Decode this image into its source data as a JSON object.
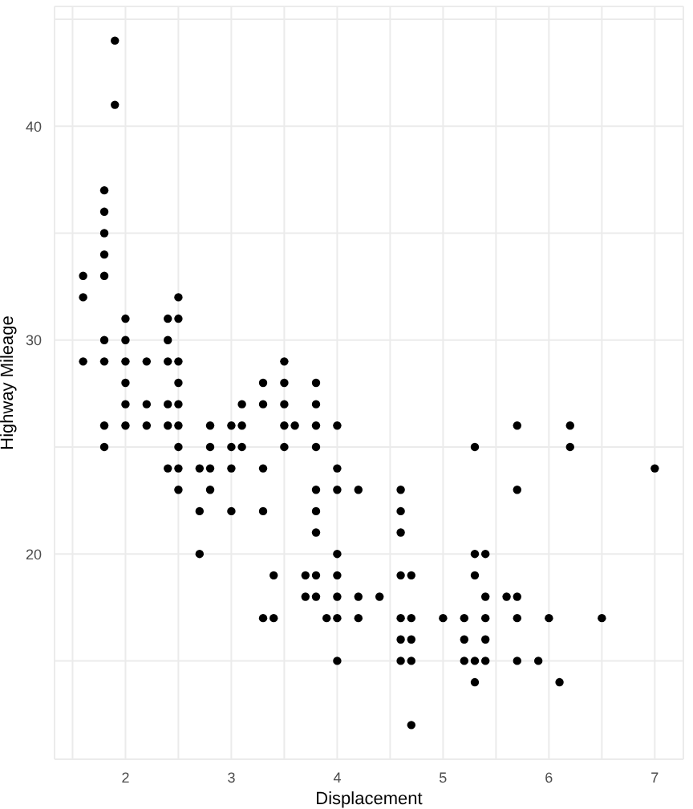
{
  "chart_data": {
    "type": "scatter",
    "xlabel": "Displacement",
    "ylabel": "Highway Mileage",
    "x": [
      1.6,
      1.6,
      1.6,
      1.8,
      1.8,
      1.8,
      1.8,
      1.8,
      1.8,
      1.8,
      1.8,
      1.8,
      1.9,
      1.9,
      2.0,
      2.0,
      2.0,
      2.0,
      2.0,
      2.0,
      2.2,
      2.2,
      2.2,
      2.4,
      2.4,
      2.4,
      2.4,
      2.4,
      2.4,
      2.5,
      2.5,
      2.5,
      2.5,
      2.5,
      2.5,
      2.5,
      2.5,
      2.5,
      2.7,
      2.7,
      2.7,
      2.8,
      2.8,
      2.8,
      2.8,
      3.0,
      3.0,
      3.0,
      3.0,
      3.1,
      3.1,
      3.1,
      3.3,
      3.3,
      3.3,
      3.3,
      3.3,
      3.4,
      3.4,
      3.5,
      3.5,
      3.5,
      3.5,
      3.5,
      3.6,
      3.7,
      3.7,
      3.8,
      3.8,
      3.8,
      3.8,
      3.8,
      3.8,
      3.8,
      3.8,
      3.8,
      3.9,
      4.0,
      4.0,
      4.0,
      4.0,
      4.0,
      4.0,
      4.0,
      4.0,
      4.2,
      4.2,
      4.2,
      4.4,
      4.6,
      4.6,
      4.6,
      4.6,
      4.6,
      4.6,
      4.6,
      4.7,
      4.7,
      4.7,
      4.7,
      4.7,
      5.0,
      5.2,
      5.2,
      5.2,
      5.3,
      5.3,
      5.3,
      5.3,
      5.3,
      5.4,
      5.4,
      5.4,
      5.4,
      5.4,
      5.6,
      5.7,
      5.7,
      5.7,
      5.7,
      5.7,
      5.9,
      6.0,
      6.1,
      6.2,
      6.2,
      6.5,
      7.0
    ],
    "values": [
      33,
      32,
      29,
      37,
      36,
      35,
      34,
      33,
      30,
      29,
      26,
      25,
      44,
      41,
      31,
      30,
      29,
      28,
      27,
      26,
      29,
      27,
      26,
      31,
      30,
      29,
      27,
      26,
      24,
      32,
      31,
      29,
      28,
      27,
      26,
      25,
      24,
      23,
      24,
      22,
      20,
      26,
      25,
      24,
      23,
      26,
      25,
      24,
      22,
      27,
      26,
      25,
      28,
      27,
      24,
      22,
      17,
      19,
      17,
      29,
      28,
      27,
      26,
      25,
      26,
      19,
      18,
      28,
      27,
      26,
      25,
      23,
      22,
      21,
      19,
      18,
      17,
      26,
      24,
      23,
      20,
      19,
      18,
      17,
      15,
      23,
      18,
      17,
      18,
      23,
      22,
      21,
      19,
      17,
      16,
      15,
      19,
      17,
      16,
      15,
      12,
      17,
      17,
      16,
      15,
      25,
      20,
      19,
      15,
      14,
      20,
      18,
      17,
      16,
      15,
      18,
      26,
      23,
      18,
      17,
      15,
      15,
      17,
      14,
      26,
      25,
      17,
      24
    ],
    "color": "#000000",
    "marker": "circle",
    "xlim": [
      1.33,
      7.27
    ],
    "ylim": [
      10.4,
      45.6
    ],
    "xticks": [
      {
        "value": 1.5,
        "label": null
      },
      2,
      {
        "value": 2.5,
        "label": null
      },
      3,
      {
        "value": 3.5,
        "label": null
      },
      4,
      {
        "value": 4.5,
        "label": null
      },
      5,
      {
        "value": 5.5,
        "label": null
      },
      6,
      {
        "value": 6.5,
        "label": null
      },
      7
    ],
    "yticks": [
      {
        "value": 15,
        "label": null
      },
      20,
      {
        "value": 25,
        "label": null
      },
      30,
      {
        "value": 35,
        "label": null
      },
      40,
      {
        "value": 45,
        "label": null
      }
    ],
    "grid": true
  }
}
